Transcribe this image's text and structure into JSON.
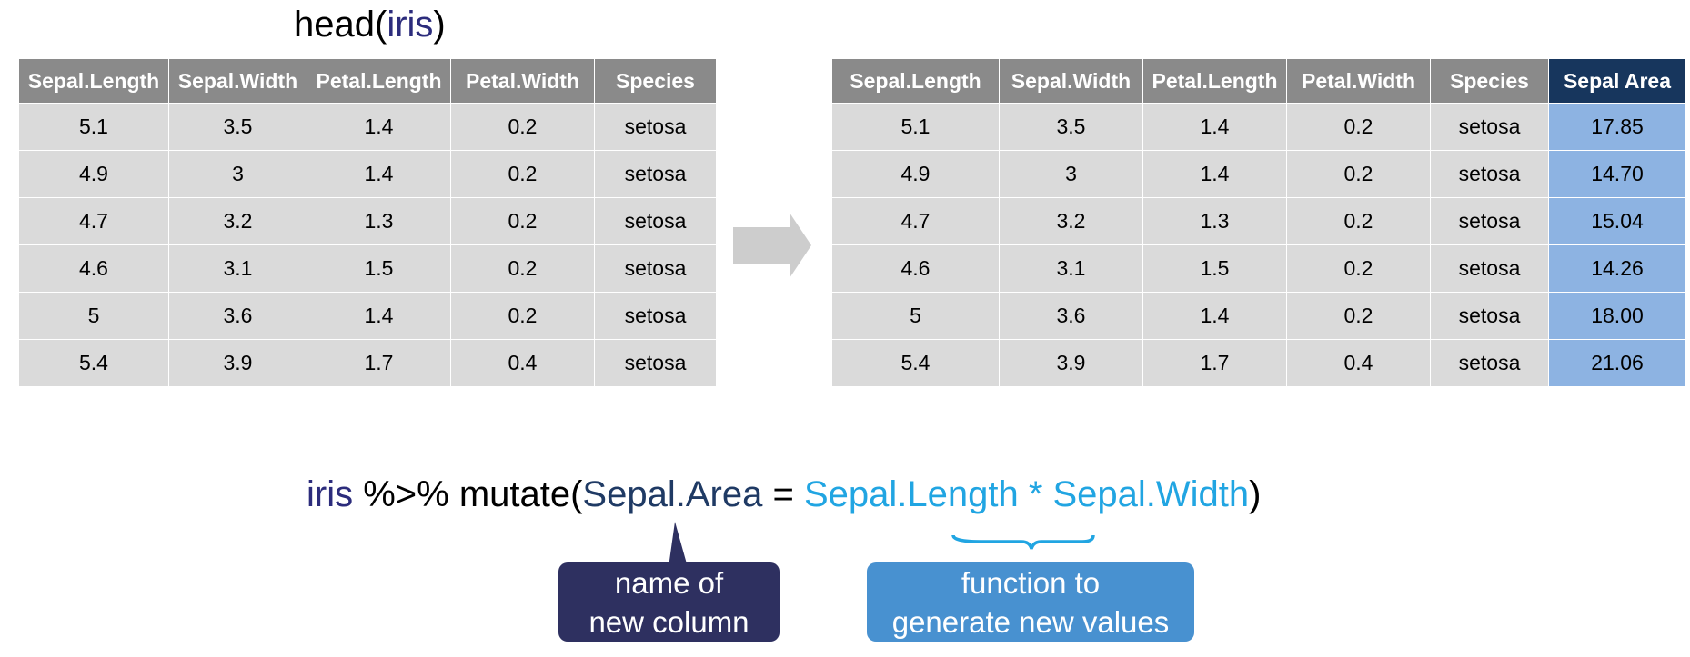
{
  "title": {
    "fn": "head(",
    "arg": "iris",
    "close": ")"
  },
  "left_table": {
    "columns": [
      "Sepal.Length",
      "Sepal.Width",
      "Petal.Length",
      "Petal.Width",
      "Species"
    ],
    "rows": [
      [
        "5.1",
        "3.5",
        "1.4",
        "0.2",
        "setosa"
      ],
      [
        "4.9",
        "3",
        "1.4",
        "0.2",
        "setosa"
      ],
      [
        "4.7",
        "3.2",
        "1.3",
        "0.2",
        "setosa"
      ],
      [
        "4.6",
        "3.1",
        "1.5",
        "0.2",
        "setosa"
      ],
      [
        "5",
        "3.6",
        "1.4",
        "0.2",
        "setosa"
      ],
      [
        "5.4",
        "3.9",
        "1.7",
        "0.4",
        "setosa"
      ]
    ]
  },
  "right_table": {
    "columns": [
      "Sepal.Length",
      "Sepal.Width",
      "Petal.Length",
      "Petal.Width",
      "Species",
      "Sepal Area"
    ],
    "rows": [
      [
        "5.1",
        "3.5",
        "1.4",
        "0.2",
        "setosa",
        "17.85"
      ],
      [
        "4.9",
        "3",
        "1.4",
        "0.2",
        "setosa",
        "14.70"
      ],
      [
        "4.7",
        "3.2",
        "1.3",
        "0.2",
        "setosa",
        "15.04"
      ],
      [
        "4.6",
        "3.1",
        "1.5",
        "0.2",
        "setosa",
        "14.26"
      ],
      [
        "5",
        "3.6",
        "1.4",
        "0.2",
        "setosa",
        "18.00"
      ],
      [
        "5.4",
        "3.9",
        "1.7",
        "0.4",
        "setosa",
        "21.06"
      ]
    ]
  },
  "code": {
    "df": "iris",
    "pipe": " %>% mutate(",
    "new_col": "Sepal.Area",
    "eq": " = ",
    "expr": "Sepal.Length * Sepal.Width",
    "close": ")"
  },
  "callouts": {
    "name_line1": "name of",
    "name_line2": "new column",
    "func_line1": "function to",
    "func_line2": "generate new values"
  },
  "colors": {
    "header_gray": "#8a8a8a",
    "cell_gray": "#dadada",
    "highlight_header": "#17365d",
    "highlight_cell": "#8db3e2",
    "code_navy": "#2c2c7c",
    "code_dark_blue": "#1f3a64",
    "code_light_blue": "#21a5e2",
    "callout_name_bg": "#2e3060",
    "callout_func_bg": "#4891d0",
    "arrow_gray": "#cdcdcd"
  }
}
